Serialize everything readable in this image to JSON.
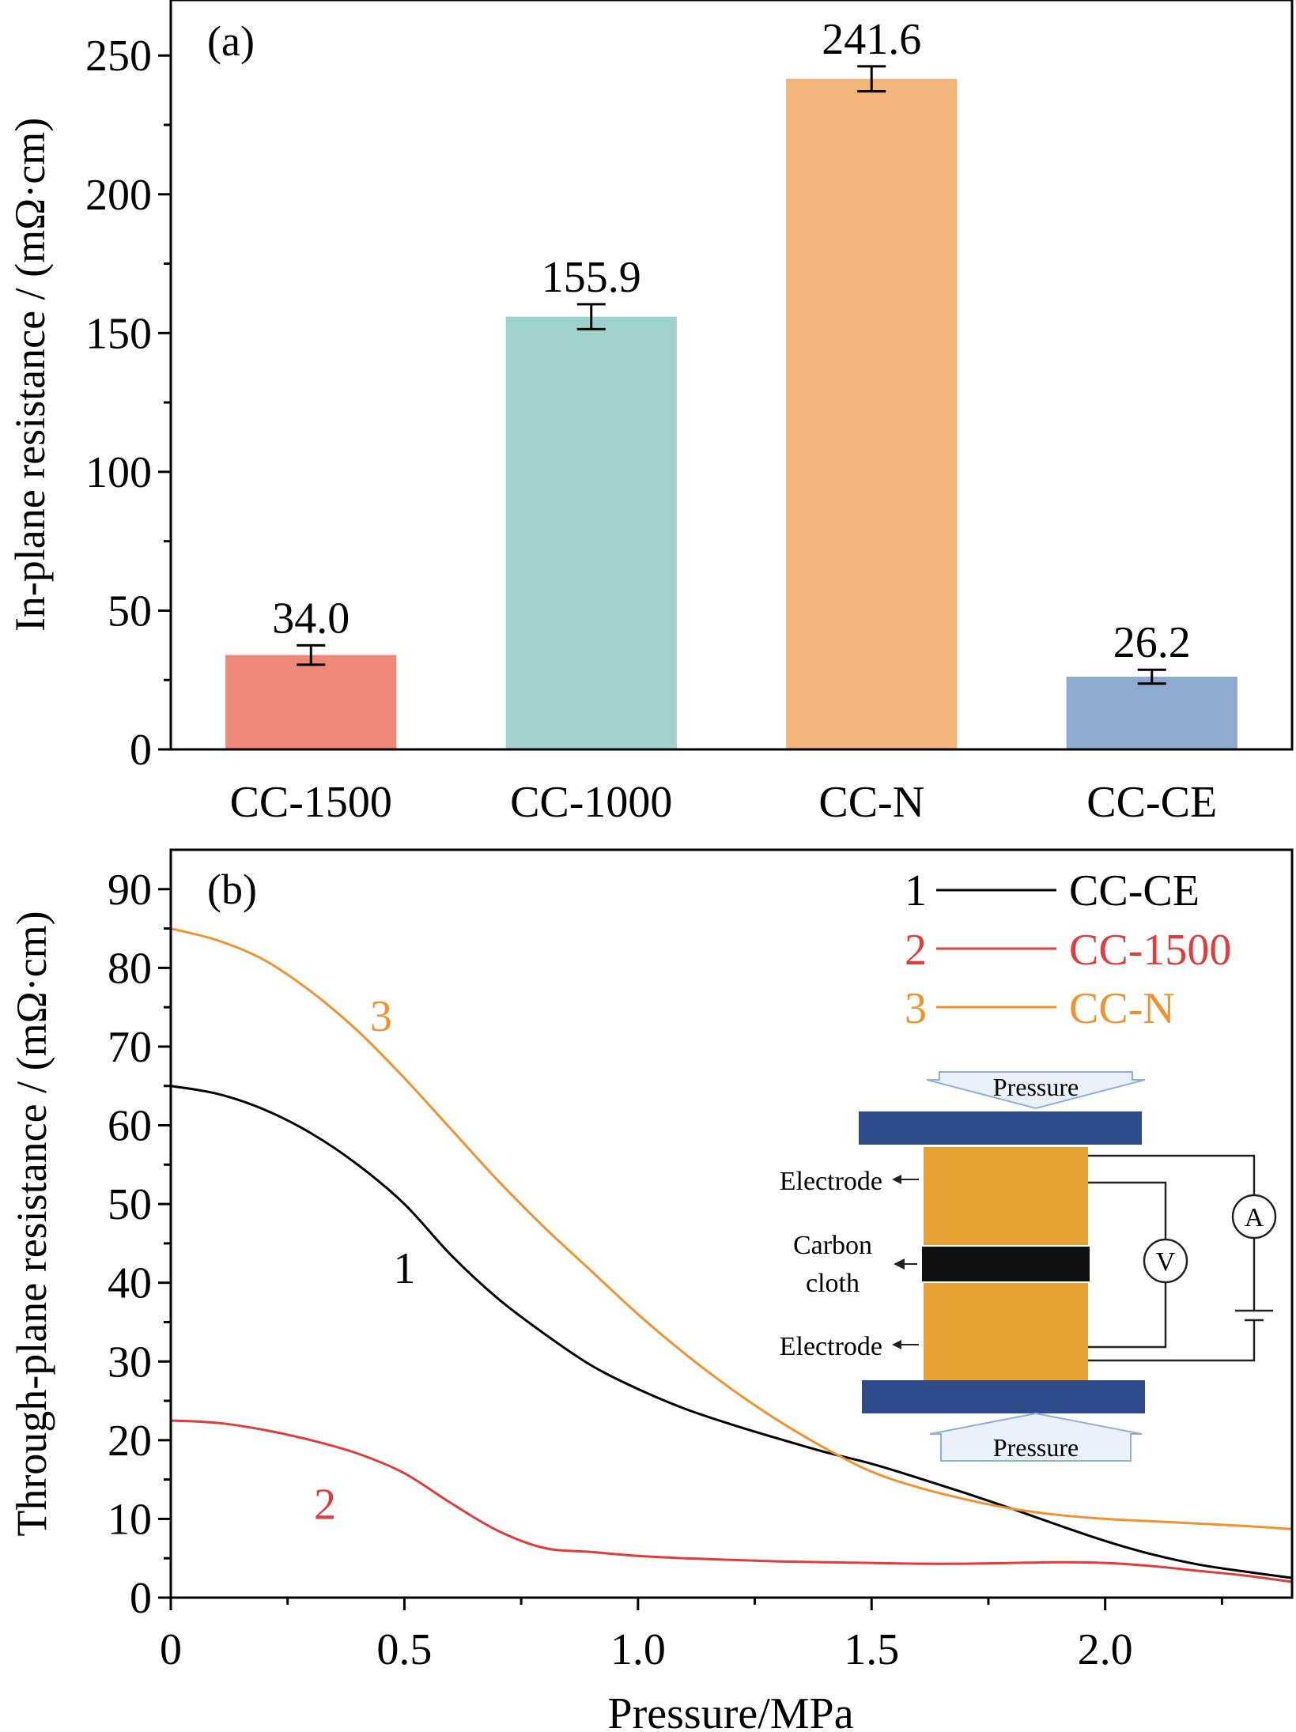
{
  "chart_data": [
    {
      "type": "bar",
      "panel_label": "(a)",
      "ylabel": "In-plane resistance / (mΩ·cm)",
      "ylim": [
        0,
        270
      ],
      "yticks": [
        0,
        50,
        100,
        150,
        200,
        250
      ],
      "yticks_minor": [
        25,
        75,
        125,
        175,
        225
      ],
      "categories": [
        "CC-1500",
        "CC-1000",
        "CC-N",
        "CC-CE"
      ],
      "values": [
        34.0,
        155.9,
        241.6,
        26.2
      ],
      "value_labels": [
        "34.0",
        "155.9",
        "241.6",
        "26.2"
      ],
      "errors": [
        3.5,
        4.5,
        4.5,
        2.5
      ],
      "colors": [
        "#f08878",
        "#9fd2cc",
        "#f3b47a",
        "#8eabcf"
      ]
    },
    {
      "type": "line",
      "panel_label": "(b)",
      "xlabel": "Pressure/MPa",
      "ylabel": "Through-plane resistance / (mΩ·cm)",
      "xlim": [
        0,
        2.4
      ],
      "ylim": [
        0,
        95
      ],
      "xticks": [
        0,
        0.5,
        1.0,
        1.5,
        2.0
      ],
      "xtick_labels": [
        "0",
        "0.5",
        "1.0",
        "1.5",
        "2.0"
      ],
      "xticks_minor": [
        0.25,
        0.75,
        1.25,
        1.75,
        2.25
      ],
      "yticks": [
        0,
        10,
        20,
        30,
        40,
        50,
        60,
        70,
        80,
        90
      ],
      "yticks_minor": [
        5,
        15,
        25,
        35,
        45,
        55,
        65,
        75,
        85
      ],
      "legend_position": "top-right",
      "series": [
        {
          "name": "CC-CE",
          "number": "1",
          "color": "#000000",
          "curve_label_at": [
            0.5,
            42
          ],
          "x": [
            0,
            0.1,
            0.2,
            0.3,
            0.4,
            0.5,
            0.6,
            0.7,
            0.8,
            0.9,
            1.0,
            1.1,
            1.2,
            1.3,
            1.4,
            1.5,
            1.6,
            1.7,
            1.8,
            1.9,
            2.0,
            2.1,
            2.2,
            2.3,
            2.4
          ],
          "y": [
            65,
            64,
            62,
            59,
            55,
            50,
            43.5,
            38,
            33.5,
            29.5,
            26.5,
            24,
            22,
            20.2,
            18.5,
            17,
            15.2,
            13.3,
            11.3,
            9.2,
            7.2,
            5.5,
            4.2,
            3.3,
            2.5
          ]
        },
        {
          "name": "CC-1500",
          "number": "2",
          "color": "#e03c3c",
          "curve_label_at": [
            0.33,
            12
          ],
          "x": [
            0,
            0.1,
            0.2,
            0.3,
            0.4,
            0.5,
            0.6,
            0.7,
            0.8,
            0.9,
            1.0,
            1.1,
            1.2,
            1.3,
            1.4,
            1.5,
            1.6,
            1.7,
            1.8,
            1.9,
            2.0,
            2.1,
            2.2,
            2.3,
            2.4
          ],
          "y": [
            22.5,
            22.2,
            21.3,
            20,
            18.3,
            15.8,
            12,
            8.5,
            6.3,
            5.8,
            5.3,
            5,
            4.8,
            4.6,
            4.5,
            4.4,
            4.3,
            4.3,
            4.4,
            4.5,
            4.4,
            4,
            3.4,
            2.8,
            2
          ]
        },
        {
          "name": "CC-N",
          "number": "3",
          "color": "#f0922f",
          "curve_label_at": [
            0.45,
            74
          ],
          "x": [
            0,
            0.1,
            0.2,
            0.3,
            0.4,
            0.5,
            0.6,
            0.7,
            0.8,
            0.9,
            1.0,
            1.1,
            1.2,
            1.3,
            1.4,
            1.5,
            1.6,
            1.7,
            1.8,
            1.9,
            2.0,
            2.1,
            2.2,
            2.3,
            2.4
          ],
          "y": [
            85,
            83.5,
            81,
            77,
            72,
            66,
            59.5,
            53,
            47,
            41.5,
            36,
            31,
            26.5,
            22.5,
            19,
            16,
            14,
            12.5,
            11.3,
            10.5,
            10,
            9.7,
            9.4,
            9.1,
            8.7
          ]
        }
      ],
      "inset": {
        "pressure_label": "Pressure",
        "electrode_label": "Electrode",
        "cloth_label_line1": "Carbon",
        "cloth_label_line2": "cloth",
        "voltmeter_label": "V",
        "ammeter_label": "A",
        "plate_color": "#2e4b8c",
        "electrode_color": "#e8a233",
        "cloth_color": "#111111"
      }
    }
  ]
}
